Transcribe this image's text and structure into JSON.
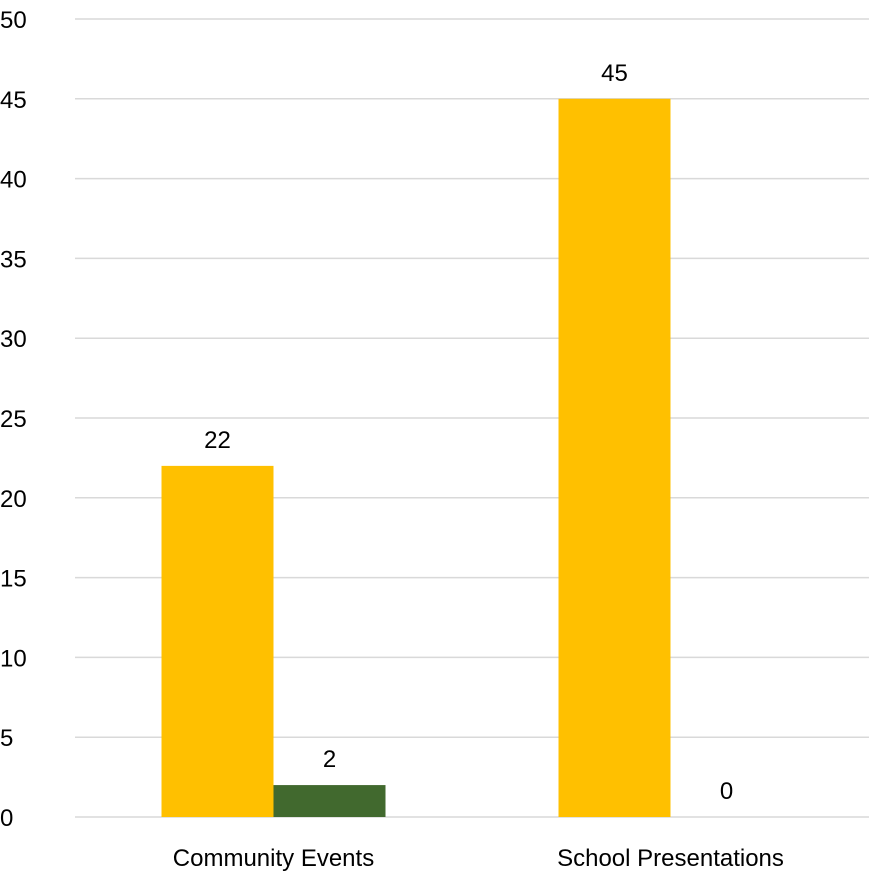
{
  "chart_data": {
    "type": "bar",
    "title": "",
    "xlabel": "",
    "ylabel": "",
    "categories": [
      "Community Events",
      "School Presentations"
    ],
    "series": [
      {
        "values": [
          22,
          45
        ],
        "color": "#FFC000"
      },
      {
        "values": [
          2,
          0
        ],
        "color": "#41692E"
      }
    ],
    "ylim": [
      0,
      50
    ],
    "yticks": [
      0,
      5,
      10,
      15,
      20,
      25,
      30,
      35,
      40,
      45,
      50
    ],
    "grid": true,
    "legend": "none",
    "data_labels": true
  }
}
